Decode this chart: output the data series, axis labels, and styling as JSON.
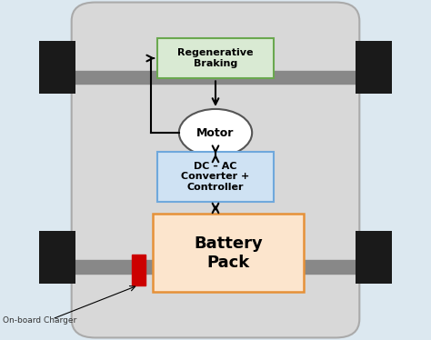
{
  "bg_color": "#dce8f0",
  "car_body_color": "#d8d8d8",
  "car_body_edge": "#aaaaaa",
  "wheel_color": "#1a1a1a",
  "axle_color": "#888888",
  "regen_box_fill": "#d9ead3",
  "regen_box_edge": "#6aa84f",
  "regen_text": "Regenerative\nBraking",
  "motor_fill": "#ffffff",
  "motor_edge": "#555555",
  "motor_text": "Motor",
  "converter_fill": "#cfe2f3",
  "converter_edge": "#6fa8dc",
  "converter_text": "DC – AC\nConverter +\nController",
  "battery_fill": "#fce5cd",
  "battery_edge": "#e69138",
  "battery_text": "Battery\nPack",
  "charger_fill": "#cc0000",
  "charger_label": "On-board Charger",
  "arrow_color": "#000000",
  "fig_width": 4.74,
  "fig_height": 3.74,
  "dpi": 100
}
